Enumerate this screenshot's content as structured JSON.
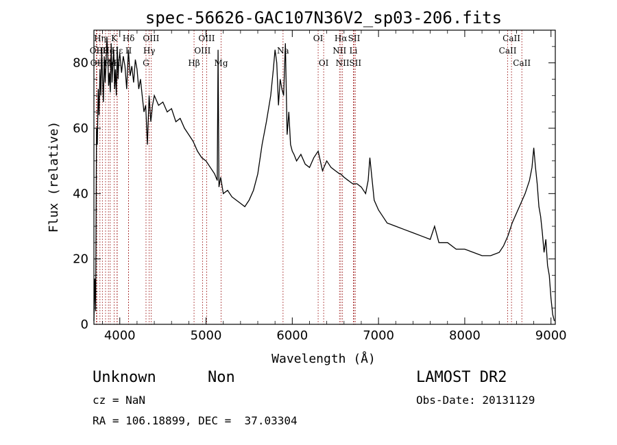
{
  "chart_data": {
    "type": "line",
    "title": "spec-56626-GAC107N36V2_sp03-206.fits",
    "xlabel": "Wavelength (Å)",
    "ylabel": "Flux (relative)",
    "xlim": [
      3700,
      9050
    ],
    "ylim": [
      0,
      90
    ],
    "xticks": [
      4000,
      5000,
      6000,
      7000,
      8000,
      9000
    ],
    "yticks": [
      0,
      20,
      40,
      60,
      80
    ],
    "line_color": "#000000",
    "marker_color": "#a52a2a",
    "spectrum": {
      "x": [
        3700,
        3710,
        3720,
        3730,
        3740,
        3750,
        3760,
        3770,
        3780,
        3790,
        3800,
        3810,
        3820,
        3830,
        3840,
        3850,
        3860,
        3870,
        3880,
        3890,
        3900,
        3910,
        3920,
        3930,
        3940,
        3950,
        3960,
        3970,
        3980,
        3990,
        4000,
        4020,
        4040,
        4060,
        4080,
        4100,
        4120,
        4140,
        4160,
        4180,
        4200,
        4220,
        4240,
        4260,
        4280,
        4300,
        4320,
        4340,
        4360,
        4380,
        4400,
        4450,
        4500,
        4550,
        4600,
        4650,
        4700,
        4750,
        4800,
        4850,
        4900,
        4950,
        5000,
        5050,
        5100,
        5130,
        5140,
        5150,
        5170,
        5200,
        5250,
        5300,
        5350,
        5400,
        5450,
        5500,
        5550,
        5600,
        5650,
        5700,
        5750,
        5780,
        5800,
        5820,
        5840,
        5860,
        5880,
        5900,
        5920,
        5940,
        5960,
        5980,
        6000,
        6020,
        6050,
        6100,
        6150,
        6200,
        6250,
        6300,
        6350,
        6400,
        6450,
        6500,
        6550,
        6563,
        6600,
        6650,
        6700,
        6750,
        6800,
        6850,
        6880,
        6900,
        6950,
        7000,
        7050,
        7100,
        7200,
        7300,
        7400,
        7500,
        7600,
        7650,
        7700,
        7800,
        7900,
        8000,
        8100,
        8200,
        8300,
        8400,
        8450,
        8500,
        8550,
        8600,
        8650,
        8700,
        8750,
        8780,
        8800,
        8820,
        8840,
        8860,
        8880,
        8900,
        8920,
        8940,
        8960,
        8980,
        9000,
        9020,
        9040
      ],
      "y": [
        1,
        14,
        4,
        60,
        55,
        72,
        64,
        78,
        70,
        84,
        75,
        68,
        82,
        74,
        79,
        88,
        83,
        73,
        77,
        71,
        86,
        74,
        80,
        84,
        72,
        78,
        70,
        85,
        75,
        81,
        83,
        77,
        82,
        79,
        72,
        84,
        76,
        79,
        74,
        81,
        78,
        72,
        75,
        70,
        65,
        67,
        55,
        70,
        62,
        67,
        70,
        67,
        68,
        65,
        66,
        62,
        63,
        60,
        58,
        56,
        53,
        51,
        50,
        48,
        46,
        44,
        84,
        42,
        45,
        40,
        41,
        39,
        38,
        37,
        36,
        38,
        41,
        46,
        55,
        62,
        70,
        78,
        84,
        80,
        67,
        75,
        72,
        70,
        86,
        58,
        65,
        55,
        53,
        52,
        50,
        52,
        49,
        48,
        51,
        53,
        47,
        50,
        48,
        47,
        46,
        46,
        45,
        44,
        43,
        43,
        42,
        40,
        44,
        51,
        38,
        35,
        33,
        31,
        30,
        29,
        28,
        27,
        26,
        30,
        25,
        25,
        23,
        23,
        22,
        21,
        21,
        22,
        24,
        27,
        31,
        34,
        37,
        40,
        44,
        48,
        54,
        48,
        43,
        36,
        33,
        28,
        22,
        26,
        18,
        15,
        8,
        3,
        1
      ]
    },
    "lines": [
      {
        "w": 3727,
        "label": "OII",
        "row": 1
      },
      {
        "w": 3734,
        "label": "OII",
        "row": 2
      },
      {
        "w": 3770,
        "label": "Hη",
        "row": 0
      },
      {
        "w": 3798,
        "label": "Hθ",
        "row": 1
      },
      {
        "w": 3835,
        "label": "Hζ",
        "row": 2
      },
      {
        "w": 3868,
        "label": "He",
        "row": 1
      },
      {
        "w": 3889,
        "label": "He",
        "row": 2
      },
      {
        "w": 3934,
        "label": "K",
        "row": 0
      },
      {
        "w": 3968,
        "label": "H",
        "row": 2
      },
      {
        "w": 3970,
        "label": "Hε",
        "row": 1
      },
      {
        "w": 4102,
        "label": "Hδ",
        "row": 0
      },
      {
        "w": 4102,
        "label": "II",
        "row": 1
      },
      {
        "w": 4304,
        "label": "G",
        "row": 2
      },
      {
        "w": 4341,
        "label": "Hγ",
        "row": 1
      },
      {
        "w": 4363,
        "label": "OIII",
        "row": 0
      },
      {
        "w": 4861,
        "label": "Hβ",
        "row": 2
      },
      {
        "w": 4959,
        "label": "OIII",
        "row": 1
      },
      {
        "w": 5007,
        "label": "OIII",
        "row": 0
      },
      {
        "w": 5175,
        "label": "Mg",
        "row": 2
      },
      {
        "w": 5893,
        "label": "Na",
        "row": 1
      },
      {
        "w": 6300,
        "label": "OI",
        "row": 0
      },
      {
        "w": 6364,
        "label": "OI",
        "row": 2
      },
      {
        "w": 6548,
        "label": "NII",
        "row": 1
      },
      {
        "w": 6563,
        "label": "Hα",
        "row": 0
      },
      {
        "w": 6583,
        "label": "NII",
        "row": 2
      },
      {
        "w": 6708,
        "label": "Li",
        "row": 1
      },
      {
        "w": 6717,
        "label": "SII",
        "row": 0
      },
      {
        "w": 6731,
        "label": "SII",
        "row": 2
      },
      {
        "w": 8498,
        "label": "CaII",
        "row": 1
      },
      {
        "w": 8542,
        "label": "CaII",
        "row": 0
      },
      {
        "w": 8662,
        "label": "CaII",
        "row": 2
      }
    ]
  },
  "info": {
    "object_class": "Unknown",
    "subclass": "Non",
    "survey": "LAMOST DR2",
    "cz": "cz = NaN",
    "obs_date": "Obs-Date: 20131129",
    "coords": "RA = 106.18899, DEC =  37.03304"
  }
}
